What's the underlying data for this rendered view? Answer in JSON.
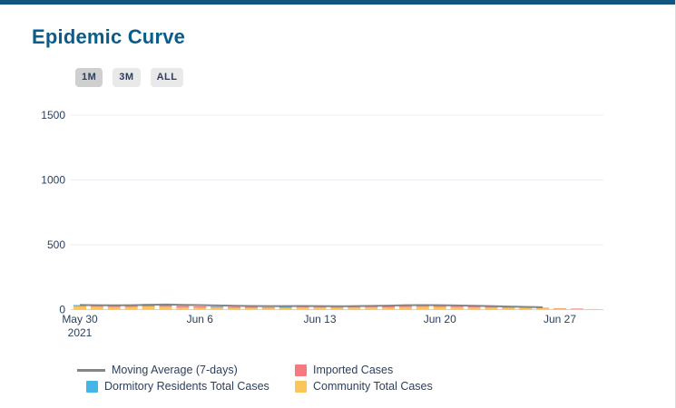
{
  "page": {
    "title": "Epidemic Curve"
  },
  "theme": {
    "top_bar_color": "#12567E",
    "title_color": "#095C8B",
    "button_active_bg": "#CFCFCF",
    "button_bg": "#E9E9EA",
    "button_text": "#2A3F5F"
  },
  "range_buttons": [
    {
      "label": "1M",
      "active": true
    },
    {
      "label": "3M",
      "active": false
    },
    {
      "label": "ALL",
      "active": false
    }
  ],
  "chart_data": {
    "type": "bar",
    "title": "Epidemic Curve",
    "stacked": true,
    "grid": "horizontal-only",
    "ylim": [
      0,
      1600
    ],
    "yticks": [
      0,
      500,
      1000,
      1500
    ],
    "xticks": [
      {
        "label": "May 30",
        "sub": "2021",
        "day": 0
      },
      {
        "label": "Jun 6",
        "day": 7
      },
      {
        "label": "Jun 13",
        "day": 14
      },
      {
        "label": "Jun 20",
        "day": 21
      },
      {
        "label": "Jun 27",
        "day": 28
      }
    ],
    "x": [
      "May 30",
      "May 31",
      "Jun 1",
      "Jun 2",
      "Jun 3",
      "Jun 4",
      "Jun 5",
      "Jun 6",
      "Jun 7",
      "Jun 8",
      "Jun 9",
      "Jun 10",
      "Jun 11",
      "Jun 12",
      "Jun 13",
      "Jun 14",
      "Jun 15",
      "Jun 16",
      "Jun 17",
      "Jun 18",
      "Jun 19",
      "Jun 20",
      "Jun 21",
      "Jun 22",
      "Jun 23",
      "Jun 24",
      "Jun 25",
      "Jun 26",
      "Jun 27",
      "Jun 28",
      "Jun 29"
    ],
    "series": [
      {
        "name": "Community Total Cases",
        "color_key": "community",
        "values": [
          25,
          22,
          20,
          21,
          24,
          22,
          18,
          16,
          15,
          14,
          13,
          12,
          14,
          16,
          15,
          14,
          16,
          18,
          17,
          20,
          22,
          21,
          19,
          17,
          15,
          14,
          12,
          11,
          9,
          7,
          4
        ]
      },
      {
        "name": "Imported Cases",
        "color_key": "imported",
        "values": [
          9,
          7,
          8,
          11,
          20,
          23,
          11,
          9,
          7,
          8,
          9,
          7,
          6,
          8,
          7,
          6,
          7,
          8,
          9,
          11,
          10,
          9,
          8,
          7,
          6,
          5,
          4,
          3,
          2,
          1,
          0
        ]
      },
      {
        "name": "Dormitory Residents Total Cases",
        "color_key": "dormitory",
        "values": [
          1,
          0,
          1,
          0,
          0,
          1,
          0,
          0,
          1,
          0,
          0,
          0,
          1,
          0,
          0,
          0,
          0,
          1,
          0,
          0,
          0,
          0,
          0,
          0,
          0,
          0,
          0,
          0,
          0,
          0,
          0
        ]
      }
    ],
    "moving_average": {
      "name": "Moving Average (7-days)",
      "values": [
        36,
        34,
        33,
        34,
        37,
        39,
        37,
        35,
        32,
        30,
        28,
        27,
        27,
        28,
        27,
        26,
        27,
        29,
        31,
        34,
        35,
        34,
        32,
        30,
        27,
        24,
        21,
        18,
        null,
        null,
        null
      ]
    },
    "colors": {
      "community": "#FBC55A",
      "imported": "#F5797E",
      "dormitory": "#44B5E6",
      "moving_average": "#858585",
      "grid_line": "#E8EEF3",
      "zero_line": "#CFD5DC",
      "tick_text": "#2A3F5F"
    },
    "legend_position": "bottom",
    "legend": [
      {
        "label": "Moving Average (7-days)",
        "marker": "line",
        "color_key": "moving_average"
      },
      {
        "label": "Imported Cases",
        "marker": "square",
        "color_key": "imported"
      },
      {
        "label": "Dormitory Residents Total Cases",
        "marker": "square",
        "color_key": "dormitory"
      },
      {
        "label": "Community Total Cases",
        "marker": "square",
        "color_key": "community"
      }
    ]
  }
}
